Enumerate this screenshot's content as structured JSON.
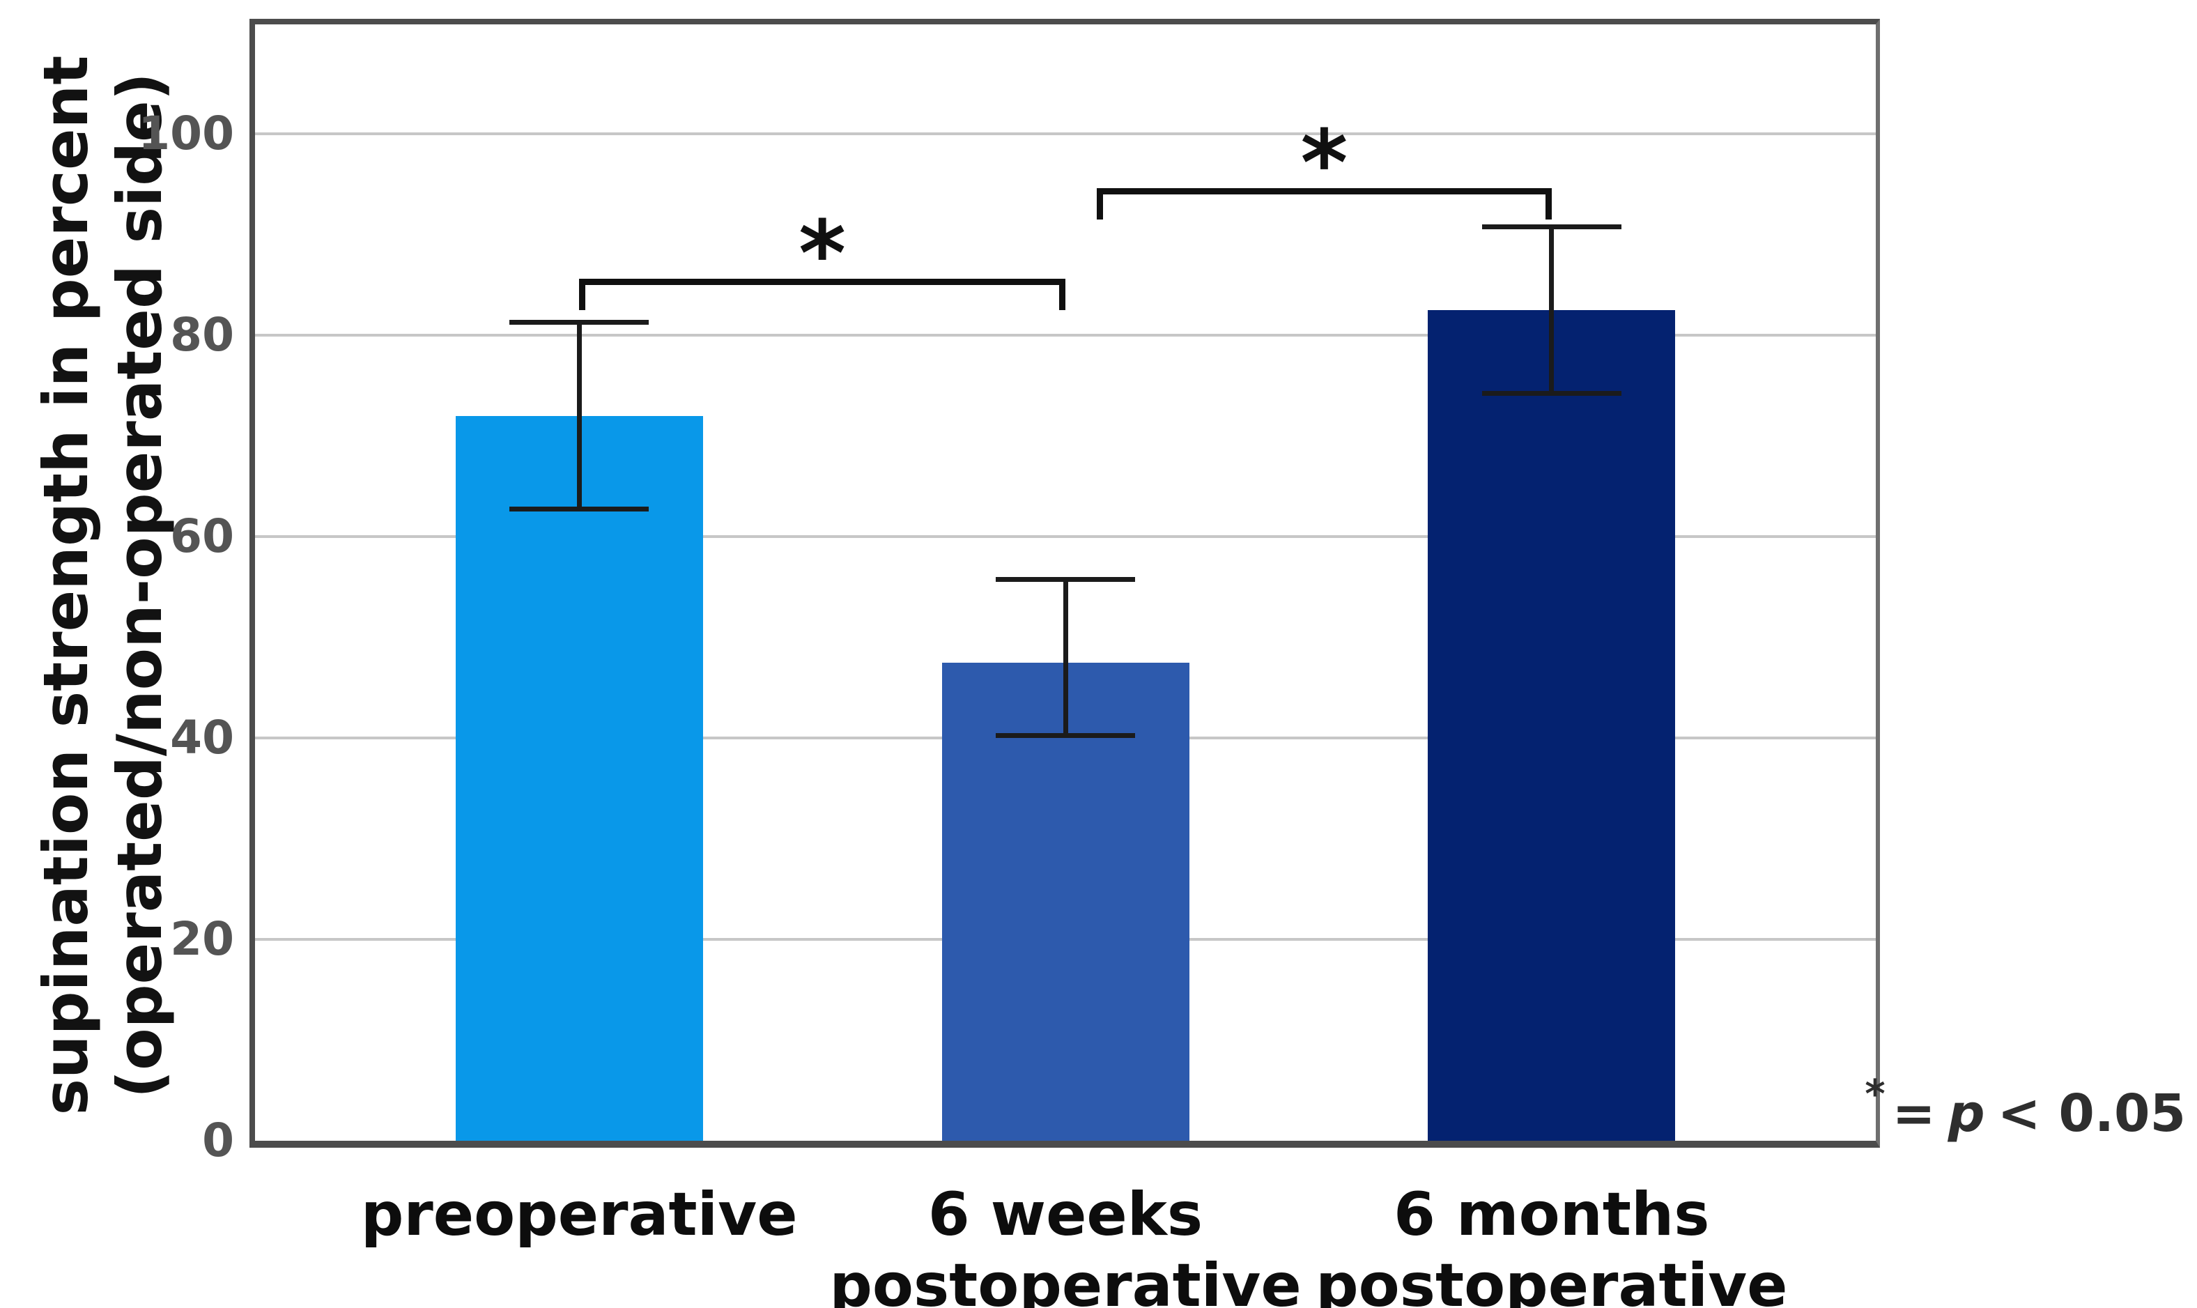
{
  "figure": {
    "y_axis_title_line1": "supination strength in percent",
    "y_axis_title_line2": "(operated/non-operated side)"
  },
  "annotation": {
    "star": "*",
    "equals": "=",
    "variable": "p",
    "comparison": "< 0.05"
  },
  "chart_data": {
    "type": "bar",
    "title": "",
    "xlabel": "",
    "ylabel": "supination strength in percent (operated/non-operated side)",
    "categories": [
      "preoperative",
      "6 weeks\npostoperative",
      "6 months\npostoperative"
    ],
    "values": [
      72,
      47.5,
      82.5
    ],
    "error_low": [
      62.5,
      40,
      74
    ],
    "error_high": [
      81.5,
      56,
      91
    ],
    "bar_colors": [
      "#0998E9",
      "#2D5AAD",
      "#042270"
    ],
    "yticks": [
      0,
      20,
      40,
      60,
      80,
      100
    ],
    "ylim": [
      0,
      112
    ],
    "grid": true,
    "legend": "none",
    "significance_brackets": [
      {
        "from": 0,
        "to": 1,
        "level": 85,
        "label": "*"
      },
      {
        "from": 1,
        "to": 2,
        "level": 94,
        "label": "*"
      }
    ],
    "significance_note": "* = p < 0.05",
    "style_colors": {
      "axis": "#4C4C4C",
      "grid": "#C7C7C7",
      "error_bar": "#1B1B1B",
      "bracket": "#101010",
      "tick_text": "#545454",
      "category_text": "#0D0D0D",
      "note_text": "#2E2E2E",
      "background": "#FFFFFF"
    }
  }
}
